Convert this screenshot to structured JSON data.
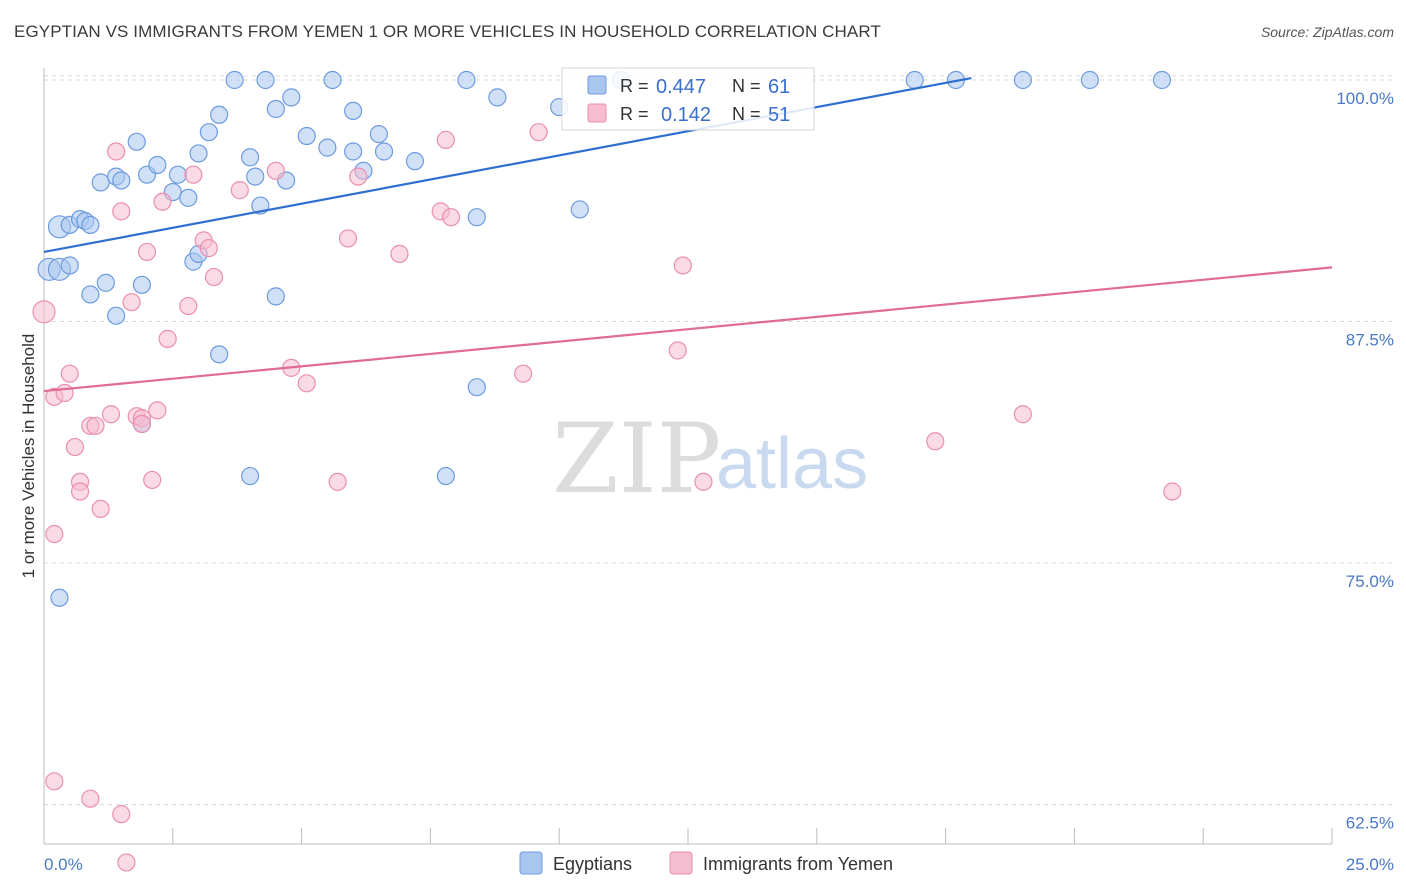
{
  "title": "EGYPTIAN VS IMMIGRANTS FROM YEMEN 1 OR MORE VEHICLES IN HOUSEHOLD CORRELATION CHART",
  "source": "Source: ZipAtlas.com",
  "watermark": {
    "zip": "ZIP",
    "atlas": "atlas"
  },
  "colors": {
    "blue_fill": "#a9c7ee",
    "blue_stroke": "#6d9be0",
    "blue_line": "#2f6fcf",
    "pink_fill": "#f6bcd0",
    "pink_stroke": "#ea8fae",
    "pink_line": "#e06b96",
    "axis_text": "#4a78c6",
    "grid": "#d9d9d9"
  },
  "legend_box": {
    "rows": [
      {
        "r_label": "R =",
        "r_value": "0.447",
        "n_label": "N =",
        "n_value": "61"
      },
      {
        "r_label": "R =",
        "r_value": "0.142",
        "n_label": "N =",
        "n_value": "51"
      }
    ]
  },
  "chart_data": {
    "type": "scatter",
    "title": "EGYPTIAN VS IMMIGRANTS FROM YEMEN 1 OR MORE VEHICLES IN HOUSEHOLD CORRELATION CHART",
    "xlabel": "",
    "ylabel": "1 or more Vehicles in Household",
    "xlim": [
      0,
      25
    ],
    "ylim": [
      50,
      100
    ],
    "x_tick_labels": [
      "0.0%",
      "25.0%"
    ],
    "y_ticks": [
      62.5,
      75.0,
      87.5,
      100.0
    ],
    "y_tick_labels": [
      "62.5%",
      "75.0%",
      "87.5%",
      "100.0%"
    ],
    "legend_position": "bottom",
    "grid": true,
    "series": [
      {
        "name": "Egyptians",
        "color": "#a9c7ee",
        "r": 0.447,
        "n": 61,
        "trend": [
          [
            0.0,
            91.1
          ],
          [
            18.0,
            100.1
          ]
        ],
        "points": [
          [
            0.1,
            90.2
          ],
          [
            0.3,
            90.2
          ],
          [
            0.3,
            92.4
          ],
          [
            0.5,
            92.5
          ],
          [
            0.5,
            90.4
          ],
          [
            0.7,
            92.8
          ],
          [
            0.8,
            92.7
          ],
          [
            0.9,
            92.5
          ],
          [
            1.1,
            94.7
          ],
          [
            1.2,
            89.5
          ],
          [
            1.4,
            95.0
          ],
          [
            1.5,
            94.8
          ],
          [
            1.8,
            96.8
          ],
          [
            2.0,
            95.1
          ],
          [
            2.2,
            95.6
          ],
          [
            2.5,
            94.2
          ],
          [
            2.6,
            95.1
          ],
          [
            2.8,
            93.9
          ],
          [
            3.0,
            96.2
          ],
          [
            3.2,
            97.3
          ],
          [
            3.4,
            98.2
          ],
          [
            3.7,
            100.0
          ],
          [
            4.0,
            96.0
          ],
          [
            4.1,
            95.0
          ],
          [
            4.2,
            93.5
          ],
          [
            4.3,
            100.0
          ],
          [
            4.5,
            98.5
          ],
          [
            4.7,
            94.8
          ],
          [
            4.8,
            99.1
          ],
          [
            5.1,
            97.1
          ],
          [
            5.5,
            96.5
          ],
          [
            5.6,
            100.0
          ],
          [
            6.0,
            98.4
          ],
          [
            6.2,
            95.3
          ],
          [
            6.5,
            97.2
          ],
          [
            6.6,
            96.3
          ],
          [
            7.2,
            95.8
          ],
          [
            8.2,
            100.0
          ],
          [
            8.4,
            92.9
          ],
          [
            8.8,
            99.1
          ],
          [
            10.0,
            98.6
          ],
          [
            10.4,
            93.3
          ],
          [
            11.2,
            100.0
          ],
          [
            16.9,
            100.0
          ],
          [
            17.7,
            100.0
          ],
          [
            19.0,
            100.0
          ],
          [
            20.3,
            100.0
          ],
          [
            21.7,
            100.0
          ],
          [
            0.3,
            73.2
          ],
          [
            0.9,
            88.9
          ],
          [
            1.4,
            87.8
          ],
          [
            1.9,
            89.4
          ],
          [
            2.9,
            90.6
          ],
          [
            3.0,
            91.0
          ],
          [
            3.4,
            85.8
          ],
          [
            4.5,
            88.8
          ],
          [
            6.0,
            96.3
          ],
          [
            8.4,
            84.1
          ],
          [
            7.8,
            79.5
          ],
          [
            4.0,
            79.5
          ],
          [
            1.9,
            82.2
          ]
        ]
      },
      {
        "name": "Immigrants from Yemen",
        "color": "#f6bcd0",
        "r": 0.142,
        "n": 51,
        "trend": [
          [
            0.0,
            83.9
          ],
          [
            25.0,
            90.3
          ]
        ],
        "points": [
          [
            0.0,
            88.0
          ],
          [
            0.2,
            83.6
          ],
          [
            0.4,
            83.8
          ],
          [
            0.5,
            84.8
          ],
          [
            0.6,
            81.0
          ],
          [
            0.7,
            79.2
          ],
          [
            0.7,
            78.7
          ],
          [
            0.9,
            82.1
          ],
          [
            1.0,
            82.1
          ],
          [
            1.1,
            77.8
          ],
          [
            1.3,
            82.7
          ],
          [
            1.4,
            96.3
          ],
          [
            1.5,
            93.2
          ],
          [
            1.7,
            88.5
          ],
          [
            1.8,
            82.6
          ],
          [
            1.9,
            82.5
          ],
          [
            2.0,
            91.1
          ],
          [
            2.1,
            79.3
          ],
          [
            2.2,
            82.9
          ],
          [
            2.3,
            93.7
          ],
          [
            2.4,
            86.6
          ],
          [
            2.8,
            88.3
          ],
          [
            2.9,
            95.1
          ],
          [
            3.1,
            91.7
          ],
          [
            3.2,
            91.3
          ],
          [
            3.3,
            89.8
          ],
          [
            3.8,
            94.3
          ],
          [
            4.5,
            95.3
          ],
          [
            4.8,
            85.1
          ],
          [
            5.1,
            84.3
          ],
          [
            5.7,
            79.2
          ],
          [
            5.9,
            91.8
          ],
          [
            6.1,
            95.0
          ],
          [
            6.9,
            91.0
          ],
          [
            7.7,
            93.2
          ],
          [
            7.8,
            96.9
          ],
          [
            7.9,
            92.9
          ],
          [
            9.3,
            84.8
          ],
          [
            9.6,
            97.3
          ],
          [
            12.4,
            90.4
          ],
          [
            12.3,
            86.0
          ],
          [
            12.8,
            79.2
          ],
          [
            17.3,
            81.3
          ],
          [
            19.0,
            82.7
          ],
          [
            21.9,
            78.7
          ],
          [
            0.2,
            76.5
          ],
          [
            0.2,
            63.7
          ],
          [
            0.9,
            62.8
          ],
          [
            1.5,
            62.0
          ],
          [
            1.6,
            59.5
          ],
          [
            1.9,
            82.2
          ]
        ]
      }
    ]
  }
}
